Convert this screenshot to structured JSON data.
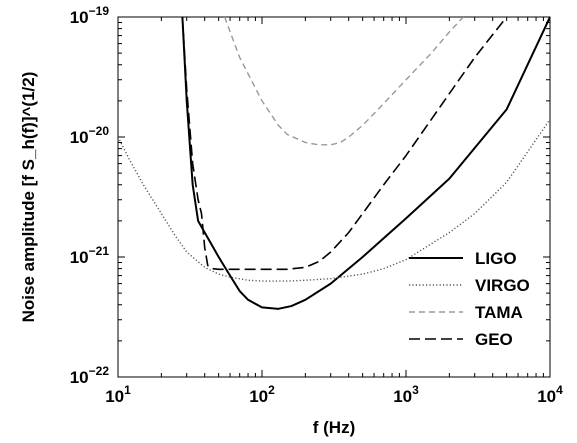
{
  "chart_data": {
    "type": "line",
    "xlabel": "f (Hz)",
    "ylabel": "Noise amplitude [f S_h(f)]^(1/2)",
    "x_scale": "log",
    "y_scale": "log",
    "xlim": [
      10,
      10000
    ],
    "ylim": [
      1e-22,
      1e-19
    ],
    "grid": false,
    "legend_position": "lower-right",
    "x_ticks": [
      {
        "value": 10,
        "base": "10",
        "exp": "1"
      },
      {
        "value": 100,
        "base": "10",
        "exp": "2"
      },
      {
        "value": 1000,
        "base": "10",
        "exp": "3"
      },
      {
        "value": 10000,
        "base": "10",
        "exp": "4"
      }
    ],
    "y_ticks": [
      {
        "value": 1e-22,
        "base": "10",
        "exp": "−22"
      },
      {
        "value": 1e-21,
        "base": "10",
        "exp": "−21"
      },
      {
        "value": 1e-20,
        "base": "10",
        "exp": "−20"
      },
      {
        "value": 1e-19,
        "base": "10",
        "exp": "−19"
      }
    ],
    "series": [
      {
        "name": "LIGO",
        "style": "solid",
        "color": "#000000",
        "x": [
          28,
          30,
          33,
          36,
          40,
          45,
          50,
          60,
          70,
          80,
          100,
          130,
          160,
          200,
          300,
          500,
          1000,
          2000,
          5000,
          10000
        ],
        "y": [
          1e-19,
          2e-20,
          4e-21,
          2e-21,
          1.6e-21,
          1.25e-21,
          1e-21,
          7e-22,
          5.2e-22,
          4.4e-22,
          3.8e-22,
          3.7e-22,
          3.9e-22,
          4.4e-22,
          6e-22,
          1e-21,
          2.1e-21,
          4.5e-21,
          1.7e-20,
          1e-19
        ]
      },
      {
        "name": "VIRGO",
        "style": "dotted",
        "color": "#555555",
        "x": [
          10,
          12,
          15,
          20,
          25,
          30,
          40,
          50,
          60,
          80,
          100,
          150,
          200,
          300,
          500,
          700,
          1000,
          2000,
          3000,
          5000,
          10000
        ],
        "y": [
          1e-20,
          6.5e-21,
          4e-21,
          2.3e-21,
          1.5e-21,
          1.1e-21,
          8.2e-22,
          7.2e-22,
          6.8e-22,
          6.4e-22,
          6.3e-22,
          6.3e-22,
          6.4e-22,
          6.6e-22,
          7.2e-22,
          8e-22,
          9.5e-22,
          1.6e-21,
          2.3e-21,
          4.2e-21,
          1.4e-20
        ]
      },
      {
        "name": "TAMA",
        "style": "dashed",
        "color": "#999999",
        "x": [
          55,
          70,
          100,
          130,
          150,
          200,
          250,
          300,
          350,
          400,
          500,
          700,
          1000,
          1500,
          2000,
          2500
        ],
        "y": [
          1e-19,
          4.6e-20,
          2e-20,
          1.25e-20,
          1.05e-20,
          9e-21,
          8.6e-21,
          8.6e-21,
          9e-21,
          1e-20,
          1.25e-20,
          1.9e-20,
          3e-20,
          5e-20,
          7.5e-20,
          1e-19
        ]
      },
      {
        "name": "GEO",
        "style": "longdash",
        "color": "#000000",
        "x": [
          28,
          30,
          33,
          36,
          38,
          40,
          42,
          45,
          50,
          70,
          100,
          150,
          200,
          250,
          300,
          400,
          500,
          700,
          1000,
          2000,
          3000,
          5000
        ],
        "y": [
          1e-19,
          2.5e-20,
          6e-21,
          3e-21,
          2.3e-21,
          1.2e-21,
          8.5e-22,
          8e-22,
          7.9e-22,
          7.9e-22,
          7.9e-22,
          7.9e-22,
          8.2e-22,
          9.2e-22,
          1.1e-21,
          1.6e-21,
          2.3e-21,
          4e-21,
          7e-21,
          2.3e-20,
          4.6e-20,
          1e-19
        ]
      }
    ]
  }
}
